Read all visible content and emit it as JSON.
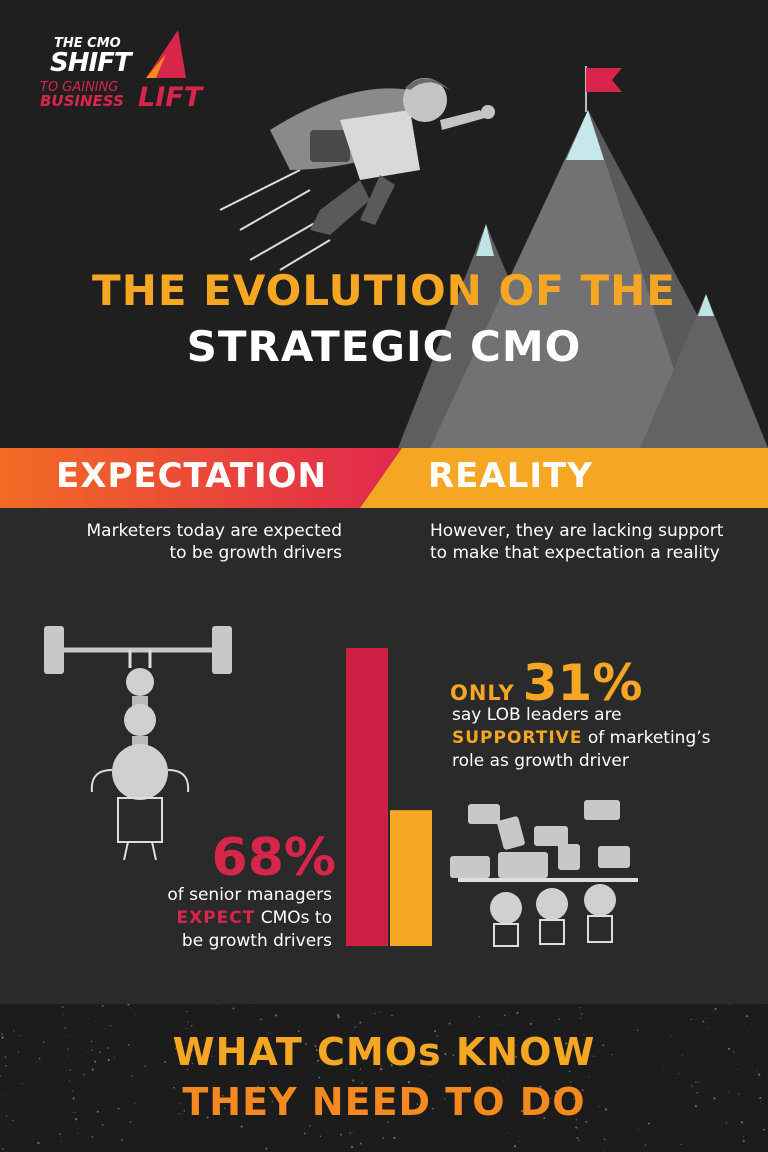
{
  "logo": {
    "line1": "THE CMO",
    "line2": "SHIFT",
    "line3": "TO GAINING",
    "line4": "BUSINESS",
    "line5": "LIFT"
  },
  "title": {
    "line1": "THE EVOLUTION OF THE",
    "line2": "STRATEGIC CMO"
  },
  "band": {
    "expectation": "EXPECTATION",
    "reality": "REALITY"
  },
  "expectation": {
    "desc_line1": "Marketers today are expected",
    "desc_line2": "to be growth drivers",
    "stat": "68%",
    "text_line1": "of senior managers",
    "text_highlight": "EXPECT",
    "text_line2_rest": " CMOs to",
    "text_line3": "be growth drivers"
  },
  "reality": {
    "desc_line1": "However, they are lacking support",
    "desc_line2": "to make that expectation a reality",
    "only": "ONLY",
    "stat": "31%",
    "text_line1": "say LOB leaders are",
    "text_highlight": "SUPPORTIVE",
    "text_line2_rest": " of marketing’s",
    "text_line3": "role as growth driver"
  },
  "chart_data": {
    "type": "bar",
    "categories": [
      "",
      ""
    ],
    "values": [
      68,
      31
    ],
    "ylim": [
      0,
      68
    ],
    "colors": [
      "#d01f45",
      "#f5a623"
    ]
  },
  "footer": {
    "line1": "WHAT CMOs KNOW",
    "line2": "THEY NEED TO DO"
  },
  "colors": {
    "accent_orange": "#f5a623",
    "accent_red": "#d8254a",
    "background": "#2a2a2a"
  }
}
